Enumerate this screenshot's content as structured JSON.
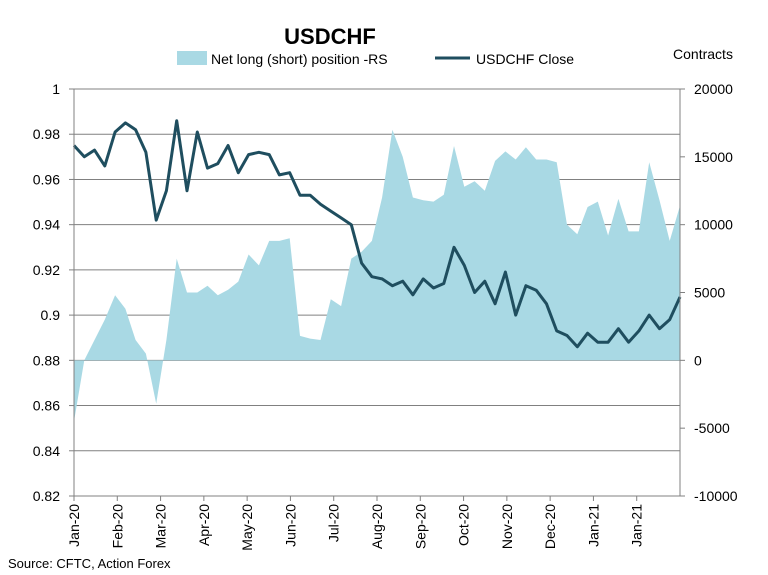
{
  "chart_data": {
    "type": "line",
    "title": "USDCHF",
    "right_axis_title": "Contracts",
    "source": "Source: CFTC, Action Forex",
    "colors": {
      "area": "#a9d9e4",
      "line": "#1f4e5f",
      "grid": "#808080",
      "axis": "#808080"
    },
    "left_axis": {
      "ylim": [
        0.82,
        1.0
      ],
      "ticks": [
        "0.82",
        "0.84",
        "0.86",
        "0.88",
        "0.9",
        "0.92",
        "0.94",
        "0.96",
        "0.98",
        "1"
      ]
    },
    "right_axis": {
      "ylim": [
        -10000,
        20000
      ],
      "ticks": [
        "-10000",
        "-5000",
        "0",
        "5000",
        "10000",
        "15000",
        "20000"
      ]
    },
    "x_labels": [
      "Jan-20",
      "Feb-20",
      "Mar-20",
      "Apr-20",
      "May-20",
      "Jun-20",
      "Jul-20",
      "Aug-20",
      "Sep-20",
      "Oct-20",
      "Nov-20",
      "Dec-20",
      "Jan-21",
      "Jan-21"
    ],
    "legend": [
      {
        "name": "Net long (short) position -RS",
        "kind": "area"
      },
      {
        "name": "USDCHF Close",
        "kind": "line"
      }
    ],
    "series": [
      {
        "name": "Net long (short) position -RS",
        "axis": "right",
        "kind": "area",
        "values": [
          -4500,
          0,
          1500,
          3000,
          4800,
          3800,
          1500,
          500,
          -3200,
          1500,
          7500,
          5000,
          5000,
          5500,
          4800,
          5200,
          5800,
          7800,
          7000,
          8800,
          8800,
          9000,
          1800,
          1600,
          1500,
          4500,
          4000,
          7500,
          8000,
          8800,
          12000,
          17000,
          15000,
          12000,
          11800,
          11700,
          12200,
          15800,
          12800,
          13200,
          12500,
          14700,
          15400,
          14800,
          15700,
          14800,
          14800,
          14600,
          10000,
          9300,
          11300,
          11700,
          9200,
          11900,
          9500,
          9500,
          14600,
          11800,
          8800,
          11400
        ]
      },
      {
        "name": "USDCHF Close",
        "axis": "left",
        "values": [
          0.975,
          0.97,
          0.973,
          0.966,
          0.981,
          0.985,
          0.982,
          0.972,
          0.942,
          0.955,
          0.986,
          0.955,
          0.981,
          0.965,
          0.967,
          0.975,
          0.963,
          0.971,
          0.972,
          0.971,
          0.962,
          0.963,
          0.953,
          0.953,
          0.949,
          0.946,
          0.943,
          0.94,
          0.923,
          0.917,
          0.916,
          0.913,
          0.915,
          0.909,
          0.916,
          0.912,
          0.914,
          0.93,
          0.922,
          0.91,
          0.915,
          0.905,
          0.919,
          0.9,
          0.913,
          0.911,
          0.905,
          0.893,
          0.891,
          0.886,
          0.892,
          0.888,
          0.888,
          0.894,
          0.888,
          0.893,
          0.9,
          0.894,
          0.898,
          0.908
        ]
      }
    ]
  }
}
